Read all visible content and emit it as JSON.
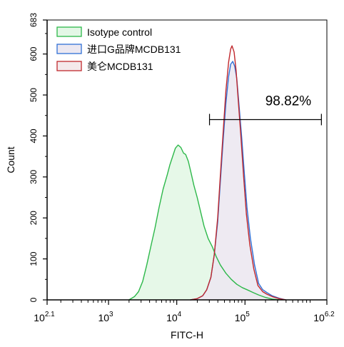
{
  "chart_data": {
    "type": "area",
    "title": "",
    "xlabel": "FITC-H",
    "ylabel": "Count",
    "x_scale": "log",
    "x_range": [
      2.1,
      6.2
    ],
    "y_range": [
      0,
      683
    ],
    "x_ticks": [
      {
        "exp": 2.1,
        "label": "2.1"
      },
      {
        "exp": 3,
        "label": ""
      },
      {
        "exp": 4,
        "label": ""
      },
      {
        "exp": 5,
        "label": ""
      },
      {
        "exp": 6.2,
        "label": "6.2"
      }
    ],
    "x_tick_base": "10",
    "x_tick_exponents_plain": [
      "3",
      "4",
      "5"
    ],
    "y_ticks": [
      0,
      100,
      200,
      300,
      400,
      500,
      600,
      683
    ],
    "grid": false,
    "legend_position": "top-left",
    "series": [
      {
        "name": "Isotype control",
        "color": "#2db84a",
        "fill": "#e3f7e6",
        "points": [
          [
            3.3,
            0
          ],
          [
            3.38,
            8
          ],
          [
            3.44,
            20
          ],
          [
            3.5,
            45
          ],
          [
            3.56,
            85
          ],
          [
            3.62,
            130
          ],
          [
            3.68,
            175
          ],
          [
            3.74,
            225
          ],
          [
            3.8,
            270
          ],
          [
            3.86,
            305
          ],
          [
            3.9,
            330
          ],
          [
            3.94,
            350
          ],
          [
            3.98,
            370
          ],
          [
            4.02,
            378
          ],
          [
            4.06,
            372
          ],
          [
            4.1,
            358
          ],
          [
            4.13,
            355
          ],
          [
            4.17,
            338
          ],
          [
            4.21,
            310
          ],
          [
            4.25,
            280
          ],
          [
            4.3,
            250
          ],
          [
            4.35,
            215
          ],
          [
            4.4,
            180
          ],
          [
            4.46,
            150
          ],
          [
            4.52,
            130
          ],
          [
            4.58,
            105
          ],
          [
            4.64,
            85
          ],
          [
            4.72,
            65
          ],
          [
            4.8,
            50
          ],
          [
            4.88,
            38
          ],
          [
            4.96,
            30
          ],
          [
            5.04,
            24
          ],
          [
            5.12,
            18
          ],
          [
            5.2,
            12
          ],
          [
            5.3,
            6
          ],
          [
            5.4,
            2
          ],
          [
            5.5,
            0
          ]
        ]
      },
      {
        "name": "进口G品牌MCDB131",
        "color": "#2f6fd6",
        "fill": "#ece8f1",
        "points": [
          [
            4.2,
            0
          ],
          [
            4.3,
            3
          ],
          [
            4.38,
            10
          ],
          [
            4.44,
            25
          ],
          [
            4.5,
            55
          ],
          [
            4.55,
            110
          ],
          [
            4.6,
            190
          ],
          [
            4.64,
            290
          ],
          [
            4.68,
            390
          ],
          [
            4.72,
            480
          ],
          [
            4.76,
            545
          ],
          [
            4.79,
            575
          ],
          [
            4.82,
            582
          ],
          [
            4.85,
            570
          ],
          [
            4.88,
            540
          ],
          [
            4.91,
            480
          ],
          [
            4.95,
            400
          ],
          [
            4.99,
            310
          ],
          [
            5.03,
            225
          ],
          [
            5.08,
            150
          ],
          [
            5.14,
            85
          ],
          [
            5.2,
            40
          ],
          [
            5.26,
            25
          ],
          [
            5.32,
            18
          ],
          [
            5.4,
            10
          ],
          [
            5.5,
            4
          ],
          [
            5.6,
            0
          ]
        ]
      },
      {
        "name": "美仑MCDB131",
        "color": "#c0282d",
        "fill": "none",
        "points": [
          [
            4.2,
            0
          ],
          [
            4.3,
            3
          ],
          [
            4.38,
            10
          ],
          [
            4.44,
            25
          ],
          [
            4.5,
            55
          ],
          [
            4.55,
            110
          ],
          [
            4.6,
            200
          ],
          [
            4.64,
            305
          ],
          [
            4.68,
            410
          ],
          [
            4.72,
            510
          ],
          [
            4.76,
            580
          ],
          [
            4.79,
            612
          ],
          [
            4.81,
            620
          ],
          [
            4.84,
            605
          ],
          [
            4.87,
            560
          ],
          [
            4.9,
            490
          ],
          [
            4.94,
            400
          ],
          [
            4.98,
            300
          ],
          [
            5.02,
            210
          ],
          [
            5.07,
            135
          ],
          [
            5.13,
            75
          ],
          [
            5.19,
            35
          ],
          [
            5.26,
            20
          ],
          [
            5.32,
            14
          ],
          [
            5.4,
            8
          ],
          [
            5.5,
            3
          ],
          [
            5.6,
            0
          ]
        ]
      }
    ],
    "annotations": [
      {
        "type": "gate",
        "label": "98.82%",
        "x_start": 4.48,
        "x_end": 6.12,
        "y": 440
      }
    ]
  }
}
